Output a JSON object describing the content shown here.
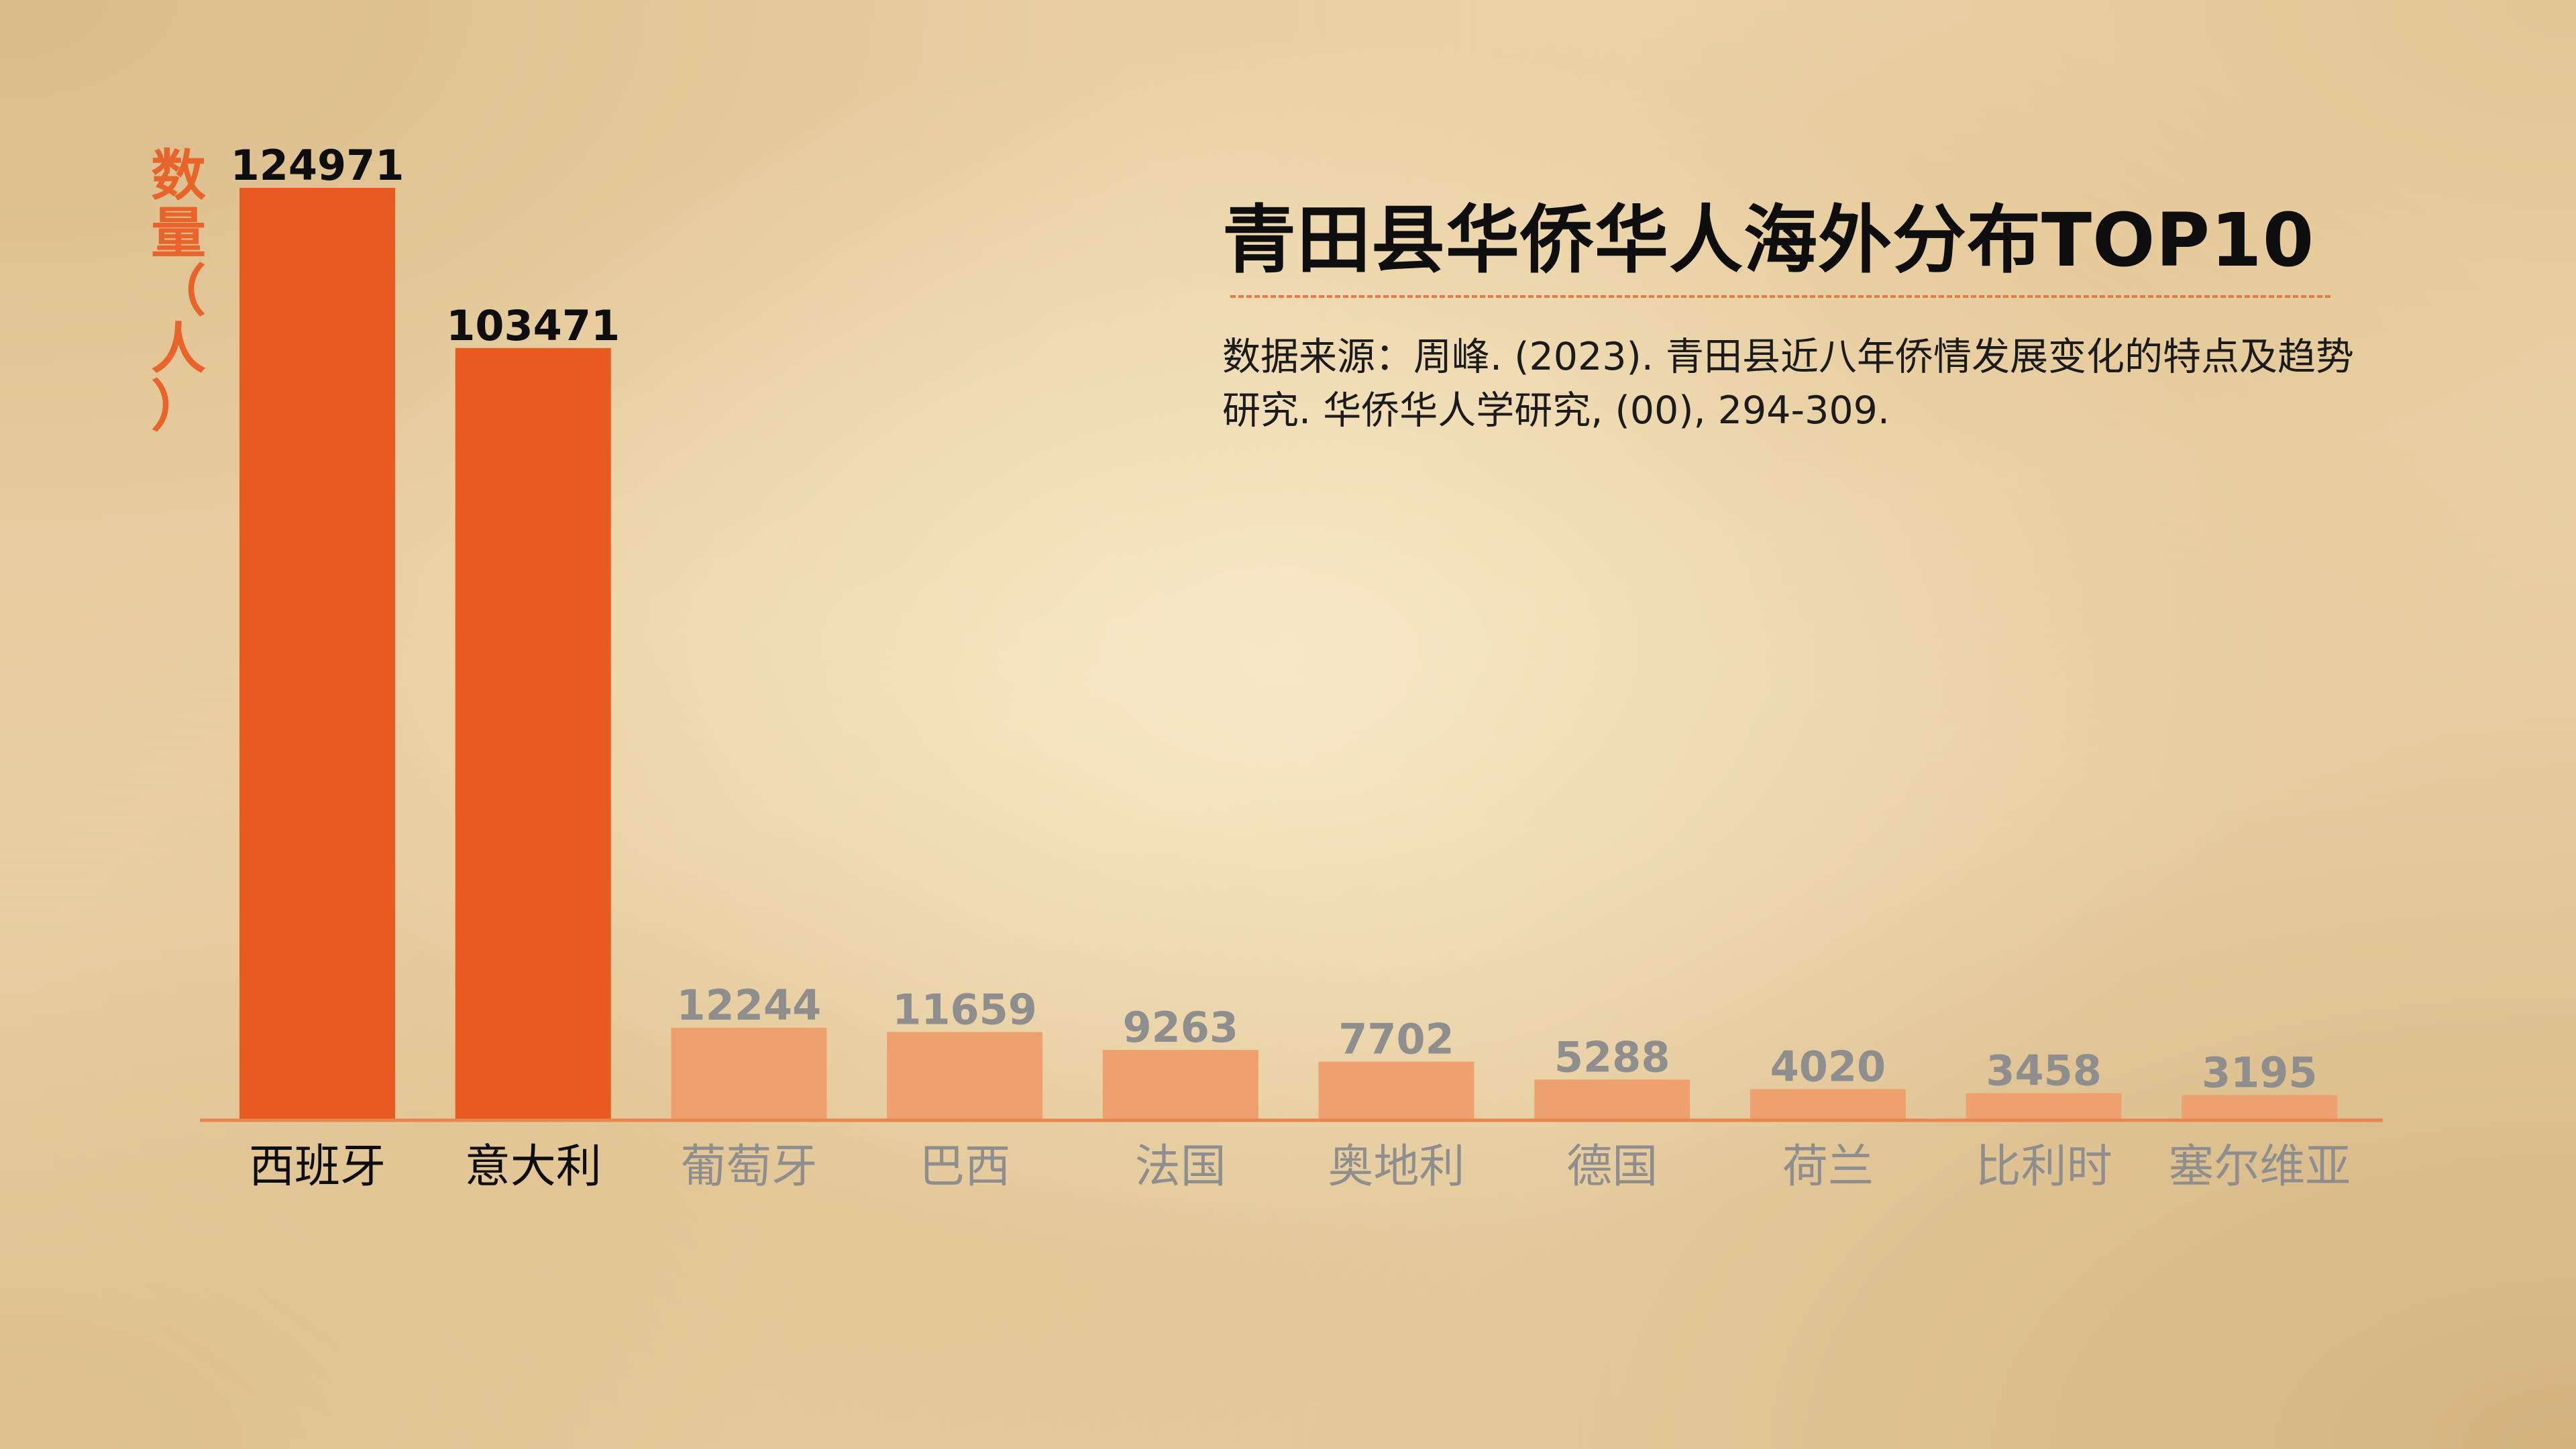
{
  "title": "青田县华侨华人海外分布TOP10",
  "source": "数据来源：周峰. (2023). 青田县近八年侨情发展变化的特点及趋势研究. 华侨华人学研究, (00), 294-309.",
  "colors": {
    "highlight_bar": "#e85a20",
    "muted_bar": "#eea06f",
    "highlight_text": "#0e0e0e",
    "muted_text": "#8e8e8e",
    "ylabel": "#e8642a",
    "axis_line": "#e8864f"
  },
  "chart_data": {
    "type": "bar",
    "title": "青田县华侨华人海外分布TOP10",
    "ylabel": "数量（人）",
    "xlabel": "",
    "categories": [
      "西班牙",
      "意大利",
      "葡萄牙",
      "巴西",
      "法国",
      "奥地利",
      "德国",
      "荷兰",
      "比利时",
      "塞尔维亚"
    ],
    "values": [
      124971,
      103471,
      12244,
      11659,
      9263,
      7702,
      5288,
      4020,
      3458,
      3195
    ],
    "highlighted": [
      true,
      true,
      false,
      false,
      false,
      false,
      false,
      false,
      false,
      false
    ],
    "ylim": [
      0,
      124971
    ],
    "grid": false,
    "legend": "none"
  }
}
